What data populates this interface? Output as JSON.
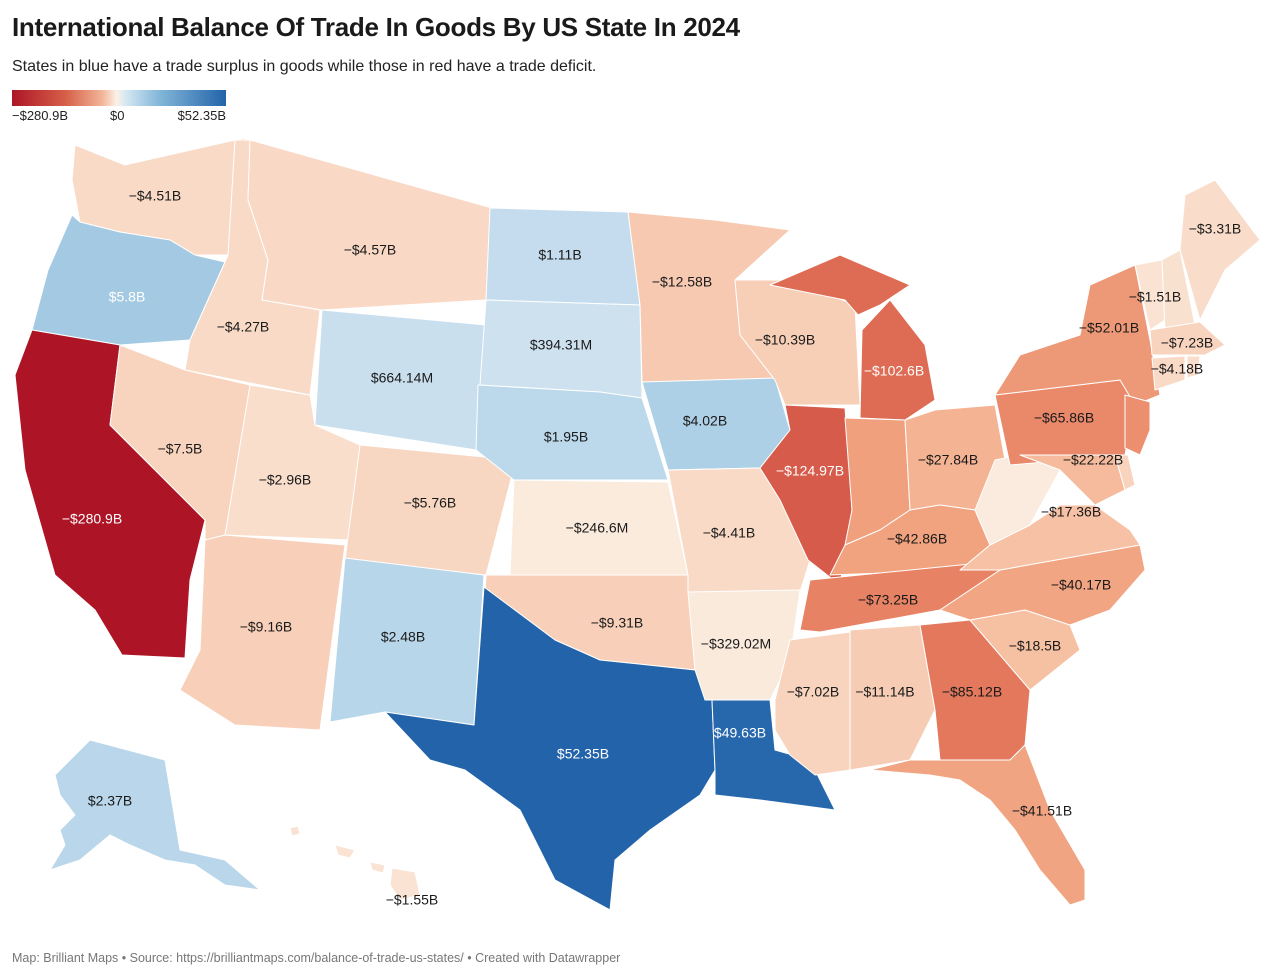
{
  "title": "International Balance Of Trade In Goods By US State In 2024",
  "subtitle": "States in blue have a trade surplus in goods while those in red have a trade deficit.",
  "legend": {
    "min_label": "−$280.9B",
    "mid_label": "$0",
    "max_label": "$52.35B",
    "min_color": "#ad1527",
    "mid_color": "#fbf1e6",
    "max_color": "#2263a9"
  },
  "footer": "Map: Brilliant Maps • Source: https://brilliantmaps.com/balance-of-trade-us-states/ • Created with Datawrapper",
  "states": [
    {
      "id": "WA",
      "label": "−$4.51B",
      "value_billion": -4.51
    },
    {
      "id": "OR",
      "label": "$5.8B",
      "value_billion": 5.8
    },
    {
      "id": "CA",
      "label": "−$280.9B",
      "value_billion": -280.9
    },
    {
      "id": "ID",
      "label": "−$4.27B",
      "value_billion": -4.27
    },
    {
      "id": "NV",
      "label": "−$7.5B",
      "value_billion": -7.5
    },
    {
      "id": "MT",
      "label": "−$4.57B",
      "value_billion": -4.57
    },
    {
      "id": "WY",
      "label": "$664.14M",
      "value_billion": 0.66414
    },
    {
      "id": "UT",
      "label": "−$2.96B",
      "value_billion": -2.96
    },
    {
      "id": "AZ",
      "label": "−$9.16B",
      "value_billion": -9.16
    },
    {
      "id": "CO",
      "label": "−$5.76B",
      "value_billion": -5.76
    },
    {
      "id": "NM",
      "label": "$2.48B",
      "value_billion": 2.48
    },
    {
      "id": "ND",
      "label": "$1.11B",
      "value_billion": 1.11
    },
    {
      "id": "SD",
      "label": "$394.31M",
      "value_billion": 0.39431
    },
    {
      "id": "NE",
      "label": "$1.95B",
      "value_billion": 1.95
    },
    {
      "id": "KS",
      "label": "−$246.6M",
      "value_billion": -0.2466
    },
    {
      "id": "OK",
      "label": "−$9.31B",
      "value_billion": -9.31
    },
    {
      "id": "TX",
      "label": "$52.35B",
      "value_billion": 52.35
    },
    {
      "id": "MN",
      "label": "−$12.58B",
      "value_billion": -12.58
    },
    {
      "id": "IA",
      "label": "$4.02B",
      "value_billion": 4.02
    },
    {
      "id": "MO",
      "label": "−$4.41B",
      "value_billion": -4.41
    },
    {
      "id": "AR",
      "label": "−$329.02M",
      "value_billion": -0.32902
    },
    {
      "id": "LA",
      "label": "$49.63B",
      "value_billion": 49.63
    },
    {
      "id": "WI",
      "label": "−$10.39B",
      "value_billion": -10.39
    },
    {
      "id": "IL",
      "label": "−$124.97B",
      "value_billion": -124.97
    },
    {
      "id": "MI",
      "label": "−$102.6B",
      "value_billion": -102.6
    },
    {
      "id": "IN",
      "label": "",
      "value_billion": -45
    },
    {
      "id": "OH",
      "label": "−$27.84B",
      "value_billion": -27.84
    },
    {
      "id": "KY",
      "label": "−$42.86B",
      "value_billion": -42.86
    },
    {
      "id": "TN",
      "label": "−$73.25B",
      "value_billion": -73.25
    },
    {
      "id": "MS",
      "label": "−$7.02B",
      "value_billion": -7.02
    },
    {
      "id": "AL",
      "label": "−$11.14B",
      "value_billion": -11.14
    },
    {
      "id": "GA",
      "label": "−$85.12B",
      "value_billion": -85.12
    },
    {
      "id": "FL",
      "label": "−$41.51B",
      "value_billion": -41.51
    },
    {
      "id": "SC",
      "label": "−$18.5B",
      "value_billion": -18.5
    },
    {
      "id": "NC",
      "label": "−$40.17B",
      "value_billion": -40.17
    },
    {
      "id": "VA",
      "label": "−$17.36B",
      "value_billion": -17.36
    },
    {
      "id": "WV",
      "label": "",
      "value_billion": -0.2
    },
    {
      "id": "PA",
      "label": "−$65.86B",
      "value_billion": -65.86
    },
    {
      "id": "NY",
      "label": "−$52.01B",
      "value_billion": -52.01
    },
    {
      "id": "NJ",
      "label": "",
      "value_billion": -60
    },
    {
      "id": "MD",
      "label": "−$22.22B",
      "value_billion": -22.22
    },
    {
      "id": "DE",
      "label": "",
      "value_billion": -8
    },
    {
      "id": "VT",
      "label": "−$1.51B",
      "value_billion": -1.51
    },
    {
      "id": "NH",
      "label": "",
      "value_billion": -2
    },
    {
      "id": "ME",
      "label": "−$3.31B",
      "value_billion": -3.31
    },
    {
      "id": "MA",
      "label": "−$7.23B",
      "value_billion": -7.23
    },
    {
      "id": "CT",
      "label": "−$4.18B",
      "value_billion": -4.18
    },
    {
      "id": "RI",
      "label": "",
      "value_billion": -3
    },
    {
      "id": "AK",
      "label": "$2.37B",
      "value_billion": 2.37
    },
    {
      "id": "HI",
      "label": "−$1.55B",
      "value_billion": -1.55
    }
  ]
}
